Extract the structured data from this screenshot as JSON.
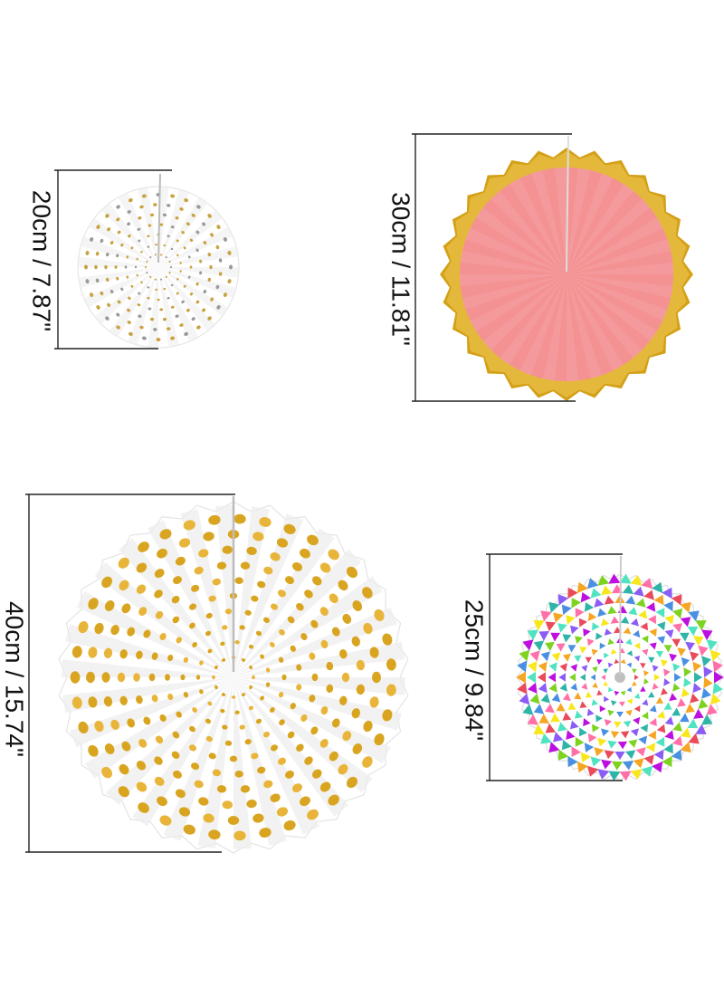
{
  "fans": [
    {
      "name": "white-gold-dot-fan-small",
      "size_label": "20cm / 7.87\""
    },
    {
      "name": "pink-gold-rim-fan",
      "size_label": "30cm / 11.81\""
    },
    {
      "name": "white-gold-dot-fan-large",
      "size_label": "40cm / 15.74\""
    },
    {
      "name": "multicolor-pennant-fan",
      "size_label": "25cm / 9.84\""
    }
  ],
  "colors": {
    "gold": "#d9a520",
    "gold_light": "#f2cf5a",
    "pink": "#f59a9c",
    "white": "#ffffff",
    "fold_shadow": "#e9e9ea",
    "line": "#222222"
  }
}
